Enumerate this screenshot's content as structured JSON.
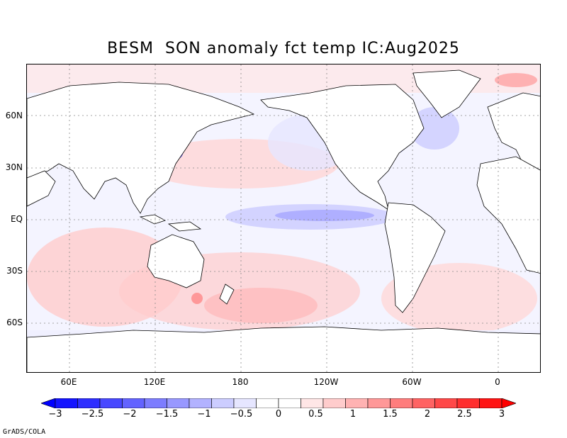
{
  "title": "BESM  SON anomaly fct temp IC:Aug2025",
  "lat_labels": [
    "60N",
    "30N",
    "EQ",
    "30S",
    "60S"
  ],
  "lon_labels": [
    "60E",
    "120E",
    "180",
    "120W",
    "60W",
    "0"
  ],
  "colorbar": {
    "ticks": [
      "-3",
      "-2.5",
      "-2",
      "-1.5",
      "-1",
      "-0.5",
      "0",
      "0.5",
      "1",
      "1.5",
      "2",
      "2.5",
      "3"
    ],
    "colors": [
      "#1414ff",
      "#2e2eff",
      "#4848ff",
      "#6363ff",
      "#7d7dff",
      "#9898ff",
      "#b2b2ff",
      "#cccdff",
      "#e6e6ff",
      "#ffffff",
      "#ffffff",
      "#ffe6e6",
      "#ffcccc",
      "#ffb2b2",
      "#ff9898",
      "#ff7d7d",
      "#ff6363",
      "#ff4848",
      "#ff2e2e",
      "#ff1414"
    ]
  },
  "credit": "GrADS/COLA"
}
